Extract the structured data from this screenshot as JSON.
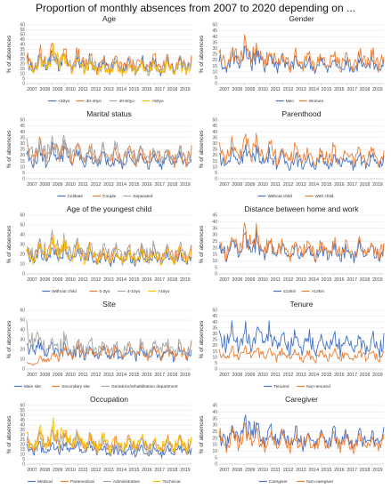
{
  "title": "Proportion of monthly absences from 2007 to 2020 depending on ...",
  "colors": {
    "blue": "#4472C4",
    "orange": "#ED7D31",
    "gray": "#A5A5A5",
    "yellow": "#FFC000"
  },
  "chart_data": [
    {
      "type": "line",
      "title": "Age",
      "ylabel": "% of absences",
      "ylim": [
        0,
        60
      ],
      "yticks": [
        0,
        5,
        10,
        15,
        20,
        25,
        30,
        35,
        40,
        45,
        50,
        55,
        60
      ],
      "x": [
        "2007",
        "2008",
        "2009",
        "2010",
        "2011",
        "2012",
        "2013",
        "2014",
        "2015",
        "2016",
        "2017",
        "2018",
        "2019"
      ],
      "series": [
        {
          "name": "<30yo",
          "color": "#4472C4",
          "profile": [
            18,
            22,
            24,
            20,
            19,
            17,
            18,
            16,
            17,
            18,
            16,
            17,
            17
          ]
        },
        {
          "name": "30-40yo",
          "color": "#ED7D31",
          "profile": [
            21,
            25,
            28,
            23,
            22,
            19,
            20,
            19,
            20,
            20,
            19,
            19,
            20
          ]
        },
        {
          "name": "40-50yo",
          "color": "#A5A5A5",
          "profile": [
            17,
            21,
            22,
            19,
            18,
            16,
            17,
            15,
            16,
            16,
            16,
            17,
            18
          ]
        },
        {
          "name": ">50yo",
          "color": "#FFC000",
          "profile": [
            15,
            20,
            26,
            18,
            17,
            15,
            15,
            14,
            15,
            15,
            14,
            16,
            16
          ]
        }
      ]
    },
    {
      "type": "line",
      "title": "Gender",
      "ylabel": "% of absences",
      "ylim": [
        0,
        50
      ],
      "yticks": [
        0,
        5,
        10,
        15,
        20,
        25,
        30,
        35,
        40,
        45,
        50
      ],
      "x": [
        "2007",
        "2008",
        "2009",
        "2010",
        "2011",
        "2012",
        "2013",
        "2014",
        "2015",
        "2016",
        "2017",
        "2018",
        "2019"
      ],
      "series": [
        {
          "name": "Men",
          "color": "#4472C4",
          "profile": [
            16,
            20,
            22,
            19,
            18,
            16,
            15,
            15,
            15,
            15,
            14,
            15,
            15
          ]
        },
        {
          "name": "Women",
          "color": "#ED7D31",
          "profile": [
            20,
            24,
            26,
            22,
            21,
            18,
            19,
            18,
            19,
            19,
            18,
            19,
            19
          ]
        }
      ]
    },
    {
      "type": "line",
      "title": "Marital status",
      "ylabel": "% of absences",
      "ylim": [
        0,
        50
      ],
      "yticks": [
        0,
        5,
        10,
        15,
        20,
        25,
        30,
        35,
        40,
        45,
        50
      ],
      "x": [
        "2007",
        "2008",
        "2009",
        "2010",
        "2011",
        "2012",
        "2013",
        "2014",
        "2015",
        "2016",
        "2017",
        "2018",
        "2019"
      ],
      "series": [
        {
          "name": "Celibate",
          "color": "#4472C4",
          "profile": [
            16,
            18,
            20,
            17,
            16,
            15,
            15,
            14,
            15,
            15,
            14,
            15,
            15
          ]
        },
        {
          "name": "Couple",
          "color": "#ED7D31",
          "profile": [
            20,
            22,
            24,
            21,
            20,
            18,
            19,
            18,
            19,
            19,
            18,
            19,
            19
          ]
        },
        {
          "name": "Separated",
          "color": "#A5A5A5",
          "profile": [
            22,
            24,
            27,
            23,
            22,
            20,
            20,
            19,
            20,
            20,
            19,
            20,
            20
          ]
        }
      ]
    },
    {
      "type": "line",
      "title": "Parenthood",
      "ylabel": "% of absences",
      "ylim": [
        0,
        50
      ],
      "yticks": [
        0,
        5,
        10,
        15,
        20,
        25,
        30,
        35,
        40,
        45,
        50
      ],
      "x": [
        "2007",
        "2008",
        "2009",
        "2010",
        "2011",
        "2012",
        "2013",
        "2014",
        "2015",
        "2016",
        "2017",
        "2018",
        "2019"
      ],
      "series": [
        {
          "name": "Without child",
          "color": "#4472C4",
          "profile": [
            15,
            18,
            20,
            17,
            16,
            14,
            14,
            13,
            14,
            14,
            13,
            14,
            14
          ]
        },
        {
          "name": "With child",
          "color": "#ED7D31",
          "profile": [
            20,
            24,
            27,
            22,
            21,
            19,
            19,
            18,
            19,
            19,
            18,
            19,
            19
          ]
        }
      ]
    },
    {
      "type": "line",
      "title": "Age of the youngest child",
      "ylabel": "% of absences",
      "ylim": [
        0,
        60
      ],
      "yticks": [
        0,
        10,
        20,
        30,
        40,
        50,
        60
      ],
      "x": [
        "2007",
        "2008",
        "2009",
        "2010",
        "2011",
        "2012",
        "2013",
        "2014",
        "2015",
        "2016",
        "2017",
        "2018",
        "2019"
      ],
      "series": [
        {
          "name": "Without child",
          "color": "#4472C4",
          "profile": [
            16,
            19,
            21,
            18,
            17,
            15,
            15,
            14,
            15,
            15,
            14,
            15,
            15
          ]
        },
        {
          "name": "0-3yo",
          "color": "#ED7D31",
          "profile": [
            20,
            24,
            26,
            22,
            21,
            19,
            19,
            18,
            19,
            19,
            18,
            19,
            19
          ]
        },
        {
          "name": "4-10yo",
          "color": "#A5A5A5",
          "profile": [
            22,
            26,
            28,
            24,
            23,
            20,
            21,
            20,
            21,
            21,
            20,
            21,
            21
          ]
        },
        {
          "name": ">10yo",
          "color": "#FFC000",
          "profile": [
            18,
            22,
            25,
            20,
            19,
            17,
            17,
            16,
            17,
            17,
            16,
            17,
            17
          ]
        }
      ]
    },
    {
      "type": "line",
      "title": "Distance between home and work",
      "ylabel": "% of absences",
      "ylim": [
        0,
        45
      ],
      "yticks": [
        0,
        5,
        10,
        15,
        20,
        25,
        30,
        35,
        40,
        45
      ],
      "x": [
        "2007",
        "2008",
        "2009",
        "2010",
        "2011",
        "2012",
        "2013",
        "2014",
        "2015",
        "2016",
        "2017",
        "2018",
        "2019"
      ],
      "series": [
        {
          "name": "≤12km",
          "color": "#4472C4",
          "profile": [
            17,
            20,
            22,
            19,
            18,
            16,
            16,
            15,
            16,
            16,
            15,
            16,
            16
          ]
        },
        {
          "name": ">12km",
          "color": "#ED7D31",
          "profile": [
            19,
            22,
            25,
            21,
            20,
            18,
            18,
            17,
            18,
            18,
            17,
            18,
            18
          ]
        }
      ]
    },
    {
      "type": "line",
      "title": "Site",
      "ylabel": "% of absences",
      "ylim": [
        0,
        60
      ],
      "yticks": [
        0,
        10,
        20,
        30,
        40,
        50,
        60
      ],
      "x": [
        "2007",
        "2008",
        "2009",
        "2010",
        "2011",
        "2012",
        "2013",
        "2014",
        "2015",
        "2016",
        "2017",
        "2018",
        "2019"
      ],
      "series": [
        {
          "name": "Main site",
          "color": "#4472C4",
          "profile": [
            20,
            18,
            17,
            16,
            16,
            15,
            15,
            14,
            15,
            15,
            15,
            15,
            16
          ]
        },
        {
          "name": "Secondary site",
          "color": "#ED7D31",
          "profile": [
            5,
            10,
            14,
            16,
            18,
            17,
            17,
            16,
            17,
            17,
            16,
            17,
            17
          ]
        },
        {
          "name": "Geriatrics/rehabilitation department",
          "color": "#A5A5A5",
          "profile": [
            32,
            26,
            24,
            22,
            21,
            20,
            20,
            19,
            20,
            20,
            22,
            20,
            20
          ]
        }
      ]
    },
    {
      "type": "line",
      "title": "Tenure",
      "ylabel": "% of absences",
      "ylim": [
        0,
        50
      ],
      "yticks": [
        0,
        5,
        10,
        15,
        20,
        25,
        30,
        35,
        40,
        45,
        50
      ],
      "x": [
        "2007",
        "2008",
        "2009",
        "2010",
        "2011",
        "2012",
        "2013",
        "2014",
        "2015",
        "2016",
        "2017",
        "2018",
        "2019"
      ],
      "series": [
        {
          "name": "Tenured",
          "color": "#4472C4",
          "profile": [
            24,
            26,
            28,
            26,
            24,
            22,
            22,
            21,
            21,
            21,
            20,
            20,
            20
          ]
        },
        {
          "name": "Non-tenured",
          "color": "#ED7D31",
          "profile": [
            11,
            12,
            14,
            12,
            12,
            11,
            11,
            10,
            11,
            11,
            10,
            11,
            11
          ]
        }
      ]
    },
    {
      "type": "line",
      "title": "Occupation",
      "ylabel": "% of absences",
      "ylim": [
        0,
        60
      ],
      "yticks": [
        0,
        5,
        10,
        15,
        20,
        25,
        30,
        35,
        40,
        45,
        50,
        55,
        60
      ],
      "x": [
        "2007",
        "2008",
        "2009",
        "2010",
        "2011",
        "2012",
        "2013",
        "2014",
        "2015",
        "2016",
        "2017",
        "2018",
        "2019"
      ],
      "series": [
        {
          "name": "Medical",
          "color": "#4472C4",
          "profile": [
            14,
            16,
            18,
            16,
            15,
            13,
            13,
            12,
            13,
            13,
            12,
            13,
            13
          ]
        },
        {
          "name": "Paramedical",
          "color": "#ED7D31",
          "profile": [
            20,
            24,
            27,
            22,
            21,
            19,
            19,
            18,
            19,
            19,
            18,
            19,
            19
          ]
        },
        {
          "name": "Administrative",
          "color": "#A5A5A5",
          "profile": [
            18,
            22,
            25,
            24,
            22,
            19,
            18,
            17,
            18,
            18,
            17,
            18,
            18
          ]
        },
        {
          "name": "Technical",
          "color": "#FFC000",
          "profile": [
            22,
            25,
            30,
            24,
            23,
            20,
            21,
            19,
            20,
            20,
            19,
            20,
            20
          ]
        }
      ]
    },
    {
      "type": "line",
      "title": "Caregiver",
      "ylabel": "% of absences",
      "ylim": [
        0,
        45
      ],
      "yticks": [
        0,
        5,
        10,
        15,
        20,
        25,
        30,
        35,
        40,
        45
      ],
      "x": [
        "2007",
        "2008",
        "2009",
        "2010",
        "2011",
        "2012",
        "2013",
        "2014",
        "2015",
        "2016",
        "2017",
        "2018",
        "2019"
      ],
      "series": [
        {
          "name": "Caregiver",
          "color": "#4472C4",
          "profile": [
            19,
            22,
            26,
            21,
            20,
            18,
            18,
            17,
            18,
            18,
            17,
            18,
            18
          ]
        },
        {
          "name": "Non-caregiver",
          "color": "#ED7D31",
          "profile": [
            17,
            19,
            21,
            18,
            17,
            16,
            16,
            15,
            16,
            16,
            15,
            16,
            16
          ]
        }
      ]
    }
  ]
}
